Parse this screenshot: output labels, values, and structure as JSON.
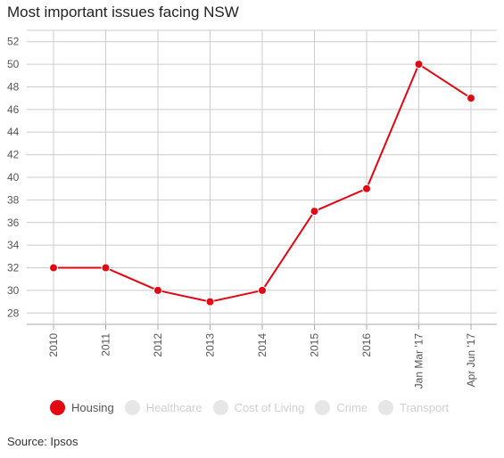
{
  "chart_data": {
    "type": "line",
    "title": "Most important issues facing NSW",
    "categories": [
      "2010",
      "2011",
      "2012",
      "2013",
      "2014",
      "2015",
      "2016",
      "Jan Mar '17",
      "Apr Jun '17"
    ],
    "series": [
      {
        "name": "Housing",
        "values": [
          32,
          32,
          30,
          29,
          30,
          37,
          39,
          50,
          47
        ],
        "color": "#e30613",
        "active": true
      }
    ],
    "ylim": [
      27,
      53
    ],
    "yticks": [
      28,
      30,
      32,
      34,
      36,
      38,
      40,
      42,
      44,
      46,
      48,
      50,
      52
    ],
    "grid": true,
    "legend_position": "bottom-left",
    "legend": [
      {
        "label": "Housing",
        "color": "#e30613",
        "active": true
      },
      {
        "label": "Healthcare",
        "color": "#e6e6e6",
        "active": false
      },
      {
        "label": "Cost of Living",
        "color": "#e6e6e6",
        "active": false
      },
      {
        "label": "Crime",
        "color": "#e6e6e6",
        "active": false
      },
      {
        "label": "Transport",
        "color": "#e6e6e6",
        "active": false
      }
    ],
    "source": "Source: Ipsos"
  }
}
